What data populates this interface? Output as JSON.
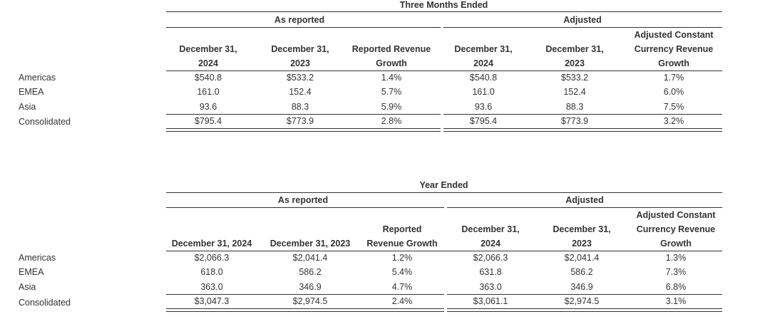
{
  "three_months": {
    "title": "Three Months Ended",
    "group_reported": "As reported",
    "group_adjusted": "Adjusted",
    "col_headers": [
      [
        "December 31,",
        "2024"
      ],
      [
        "December 31,",
        "2023"
      ],
      [
        "Reported Revenue",
        "Growth"
      ],
      [
        "December 31,",
        "2024"
      ],
      [
        "December 31,",
        "2023"
      ],
      [
        "Adjusted Constant",
        "Currency Revenue",
        "Growth"
      ]
    ],
    "rows": [
      {
        "label": "Americas",
        "values": [
          "$540.8",
          "$533.2",
          "1.4%",
          "$540.8",
          "$533.2",
          "1.7%"
        ]
      },
      {
        "label": "EMEA",
        "values": [
          "161.0",
          "152.4",
          "5.7%",
          "161.0",
          "152.4",
          "6.0%"
        ]
      },
      {
        "label": "Asia",
        "values": [
          "93.6",
          "88.3",
          "5.9%",
          "93.6",
          "88.3",
          "7.5%"
        ]
      },
      {
        "label": "Consolidated",
        "values": [
          "$795.4",
          "$773.9",
          "2.8%",
          "$795.4",
          "$773.9",
          "3.2%"
        ]
      }
    ]
  },
  "year": {
    "title": "Year Ended",
    "group_reported": "As reported",
    "group_adjusted": "Adjusted",
    "col_headers": [
      [
        "December 31, 2024"
      ],
      [
        "December 31, 2023"
      ],
      [
        "Reported",
        "Revenue Growth"
      ],
      [
        "December 31,",
        "2024"
      ],
      [
        "December 31,",
        "2023"
      ],
      [
        "Adjusted Constant",
        "Currency Revenue",
        "Growth"
      ]
    ],
    "rows": [
      {
        "label": "Americas",
        "values": [
          "$2,066.3",
          "$2,041.4",
          "1.2%",
          "$2,066.3",
          "$2,041.4",
          "1.3%"
        ]
      },
      {
        "label": "EMEA",
        "values": [
          "618.0",
          "586.2",
          "5.4%",
          "631.8",
          "586.2",
          "7.3%"
        ]
      },
      {
        "label": "Asia",
        "values": [
          "363.0",
          "346.9",
          "4.7%",
          "363.0",
          "346.9",
          "6.8%"
        ]
      },
      {
        "label": "Consolidated",
        "values": [
          "$3,047.3",
          "$2,974.5",
          "2.4%",
          "$3,061.1",
          "$2,974.5",
          "3.1%"
        ]
      }
    ]
  }
}
